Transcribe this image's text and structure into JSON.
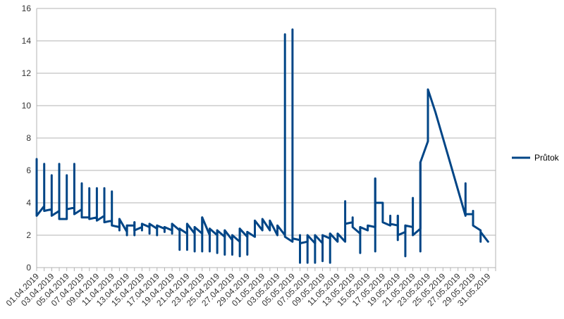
{
  "chart_data": {
    "type": "line",
    "title": "",
    "xlabel": "",
    "ylabel": "",
    "ylim": [
      0,
      16
    ],
    "yticks": [
      0,
      2,
      4,
      6,
      8,
      10,
      12,
      14,
      16
    ],
    "grid": "horizontal",
    "legend_position": "right",
    "x_range": [
      "01.04.2019",
      "01.06.2019"
    ],
    "x_tick_labels": [
      "01.04.2019",
      "03.04.2019",
      "05.04.2019",
      "07.04.2019",
      "09.04.2019",
      "11.04.2019",
      "13.04.2019",
      "15.04.2019",
      "17.04.2019",
      "19.04.2019",
      "21.04.2019",
      "23.04.2019",
      "25.04.2019",
      "27.04.2019",
      "29.04.2019",
      "01.05.2019",
      "03.05.2019",
      "05.05.2019",
      "07.05.2019",
      "09.05.2019",
      "11.05.2019",
      "13.05.2019",
      "15.05.2019",
      "17.05.2019",
      "19.05.2019",
      "21.05.2019",
      "23.05.2019",
      "25.05.2019",
      "27.05.2019",
      "29.05.2019",
      "31.05.2019"
    ],
    "series": [
      {
        "name": "Průtok",
        "color": "#004586",
        "points": [
          [
            "01.04.2019",
            6.7
          ],
          [
            "01.04.2019",
            3.2
          ],
          [
            "02.04.2019",
            3.8
          ],
          [
            "02.04.2019",
            6.4
          ],
          [
            "02.04.2019",
            3.5
          ],
          [
            "03.04.2019",
            3.6
          ],
          [
            "03.04.2019",
            5.7
          ],
          [
            "03.04.2019",
            3.2
          ],
          [
            "04.04.2019",
            3.5
          ],
          [
            "04.04.2019",
            6.4
          ],
          [
            "04.04.2019",
            3.0
          ],
          [
            "05.04.2019",
            3.0
          ],
          [
            "05.04.2019",
            5.7
          ],
          [
            "05.04.2019",
            3.6
          ],
          [
            "06.04.2019",
            3.7
          ],
          [
            "06.04.2019",
            6.4
          ],
          [
            "06.04.2019",
            3.3
          ],
          [
            "07.04.2019",
            3.6
          ],
          [
            "07.04.2019",
            5.2
          ],
          [
            "07.04.2019",
            3.1
          ],
          [
            "08.04.2019",
            3.1
          ],
          [
            "08.04.2019",
            4.9
          ],
          [
            "08.04.2019",
            3.0
          ],
          [
            "09.04.2019",
            3.1
          ],
          [
            "09.04.2019",
            4.9
          ],
          [
            "09.04.2019",
            2.9
          ],
          [
            "10.04.2019",
            3.2
          ],
          [
            "10.04.2019",
            4.9
          ],
          [
            "10.04.2019",
            2.8
          ],
          [
            "11.04.2019",
            2.9
          ],
          [
            "11.04.2019",
            4.7
          ],
          [
            "11.04.2019",
            2.6
          ],
          [
            "12.04.2019",
            2.5
          ],
          [
            "12.04.2019",
            3.0
          ],
          [
            "13.04.2019",
            2.2
          ],
          [
            "13.04.2019",
            2.6
          ],
          [
            "14.04.2019",
            2.6
          ],
          [
            "14.04.2019",
            2.8
          ],
          [
            "14.04.2019",
            2.3
          ],
          [
            "15.04.2019",
            2.5
          ],
          [
            "15.04.2019",
            2.7
          ],
          [
            "16.04.2019",
            2.5
          ],
          [
            "16.04.2019",
            2.7
          ],
          [
            "17.04.2019",
            2.4
          ],
          [
            "17.04.2019",
            2.6
          ],
          [
            "18.04.2019",
            2.4
          ],
          [
            "18.04.2019",
            2.5
          ],
          [
            "19.04.2019",
            2.3
          ],
          [
            "19.04.2019",
            2.7
          ],
          [
            "20.04.2019",
            2.3
          ],
          [
            "20.04.2019",
            2.4
          ],
          [
            "21.04.2019",
            2.1
          ],
          [
            "21.04.2019",
            2.7
          ],
          [
            "22.04.2019",
            2.1
          ],
          [
            "22.04.2019",
            2.5
          ],
          [
            "23.04.2019",
            2.1
          ],
          [
            "23.04.2019",
            3.1
          ],
          [
            "24.04.2019",
            2.0
          ],
          [
            "24.04.2019",
            2.4
          ],
          [
            "25.04.2019",
            2.0
          ],
          [
            "25.04.2019",
            2.3
          ],
          [
            "26.04.2019",
            1.9
          ],
          [
            "26.04.2019",
            2.3
          ],
          [
            "27.04.2019",
            1.7
          ],
          [
            "27.04.2019",
            2.0
          ],
          [
            "28.04.2019",
            1.6
          ],
          [
            "28.04.2019",
            2.4
          ],
          [
            "29.04.2019",
            1.9
          ],
          [
            "29.04.2019",
            2.2
          ],
          [
            "30.04.2019",
            1.9
          ],
          [
            "30.04.2019",
            2.9
          ],
          [
            "01.05.2019",
            2.3
          ],
          [
            "01.05.2019",
            3.0
          ],
          [
            "02.05.2019",
            2.3
          ],
          [
            "02.05.2019",
            2.9
          ],
          [
            "03.05.2019",
            2.0
          ],
          [
            "03.05.2019",
            2.6
          ],
          [
            "04.05.2019",
            2.0
          ],
          [
            "04.05.2019",
            14.4
          ],
          [
            "04.05.2019",
            1.9
          ],
          [
            "05.05.2019",
            1.6
          ],
          [
            "05.05.2019",
            14.7
          ],
          [
            "05.05.2019",
            1.8
          ],
          [
            "06.05.2019",
            1.7
          ],
          [
            "06.05.2019",
            2.0
          ],
          [
            "06.05.2019",
            1.5
          ],
          [
            "07.05.2019",
            1.6
          ],
          [
            "07.05.2019",
            2.0
          ],
          [
            "08.05.2019",
            1.5
          ],
          [
            "08.05.2019",
            2.0
          ],
          [
            "09.05.2019",
            1.5
          ],
          [
            "09.05.2019",
            2.0
          ],
          [
            "10.05.2019",
            1.8
          ],
          [
            "10.05.2019",
            2.1
          ],
          [
            "11.05.2019",
            1.6
          ],
          [
            "11.05.2019",
            2.1
          ],
          [
            "12.05.2019",
            1.6
          ],
          [
            "12.05.2019",
            4.1
          ],
          [
            "12.05.2019",
            2.7
          ],
          [
            "13.05.2019",
            2.8
          ],
          [
            "13.05.2019",
            3.1
          ],
          [
            "13.05.2019",
            2.5
          ],
          [
            "14.05.2019",
            2.1
          ],
          [
            "14.05.2019",
            2.5
          ],
          [
            "15.05.2019",
            2.3
          ],
          [
            "15.05.2019",
            2.6
          ],
          [
            "16.05.2019",
            2.5
          ],
          [
            "16.05.2019",
            5.5
          ],
          [
            "16.05.2019",
            4.0
          ],
          [
            "17.05.2019",
            4.0
          ],
          [
            "17.05.2019",
            2.8
          ],
          [
            "18.05.2019",
            2.6
          ],
          [
            "18.05.2019",
            3.2
          ],
          [
            "18.05.2019",
            2.7
          ],
          [
            "19.05.2019",
            2.6
          ],
          [
            "19.05.2019",
            3.2
          ],
          [
            "19.05.2019",
            2.0
          ],
          [
            "20.05.2019",
            2.2
          ],
          [
            "20.05.2019",
            2.6
          ],
          [
            "21.05.2019",
            2.5
          ],
          [
            "21.05.2019",
            4.3
          ],
          [
            "21.05.2019",
            2.0
          ],
          [
            "22.05.2019",
            2.4
          ],
          [
            "22.05.2019",
            6.5
          ],
          [
            "23.05.2019",
            7.8
          ],
          [
            "23.05.2019",
            11.0
          ],
          [
            "24.05.2019",
            9.6
          ],
          [
            "25.05.2019",
            8.0
          ],
          [
            "26.05.2019",
            6.4
          ],
          [
            "27.05.2019",
            4.8
          ],
          [
            "28.05.2019",
            3.2
          ],
          [
            "28.05.2019",
            5.2
          ],
          [
            "28.05.2019",
            3.3
          ],
          [
            "29.05.2019",
            3.3
          ],
          [
            "29.05.2019",
            3.5
          ],
          [
            "29.05.2019",
            2.6
          ],
          [
            "30.05.2019",
            2.3
          ],
          [
            "30.05.2019",
            1.6
          ],
          [
            "30.05.2019",
            2.2
          ],
          [
            "31.05.2019",
            1.6
          ]
        ],
        "low_ticks": [
          [
            "12.04.2019",
            2.3
          ],
          [
            "13.04.2019",
            2.0
          ],
          [
            "14.04.2019",
            2.0
          ],
          [
            "15.04.2019",
            2.3
          ],
          [
            "16.04.2019",
            2.1
          ],
          [
            "17.04.2019",
            2.0
          ],
          [
            "18.04.2019",
            2.2
          ],
          [
            "19.04.2019",
            2.1
          ],
          [
            "20.04.2019",
            1.1
          ],
          [
            "21.04.2019",
            1.1
          ],
          [
            "22.04.2019",
            1.0
          ],
          [
            "23.04.2019",
            1.0
          ],
          [
            "24.04.2019",
            1.0
          ],
          [
            "25.04.2019",
            0.9
          ],
          [
            "26.04.2019",
            0.8
          ],
          [
            "27.04.2019",
            0.8
          ],
          [
            "28.04.2019",
            0.7
          ],
          [
            "29.04.2019",
            0.8
          ],
          [
            "06.05.2019",
            0.3
          ],
          [
            "07.05.2019",
            0.3
          ],
          [
            "08.05.2019",
            0.3
          ],
          [
            "09.05.2019",
            0.4
          ],
          [
            "10.05.2019",
            0.3
          ],
          [
            "14.05.2019",
            0.9
          ],
          [
            "16.05.2019",
            1.0
          ],
          [
            "19.05.2019",
            1.7
          ],
          [
            "20.05.2019",
            0.7
          ],
          [
            "22.05.2019",
            1.0
          ]
        ]
      }
    ]
  }
}
